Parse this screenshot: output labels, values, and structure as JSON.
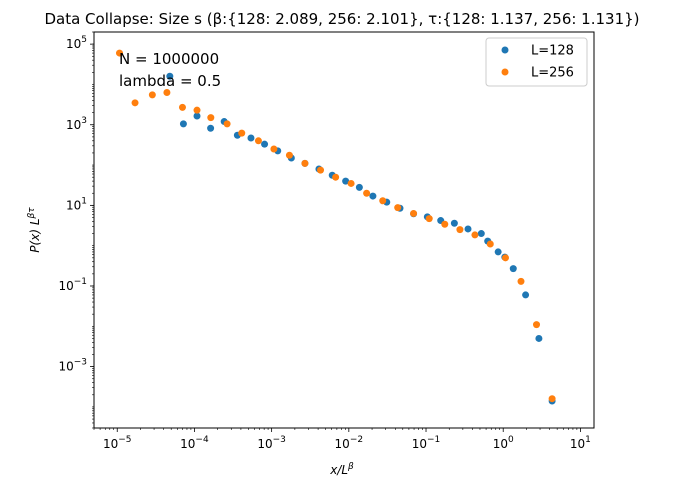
{
  "chart_data": {
    "type": "scatter",
    "title": "Data Collapse: Size s  (β:{128: 2.089, 256: 2.101}, τ:{128: 1.137, 256: 1.131})",
    "xlabel": "x/L^β",
    "ylabel": "P(x) L^βτ",
    "xscale": "log",
    "yscale": "log",
    "xlim": [
      5e-06,
      15
    ],
    "ylim": [
      3e-05,
      200000.0
    ],
    "x_ticks": [
      {
        "value": 1e-05,
        "label": "10^-5"
      },
      {
        "value": 0.0001,
        "label": "10^-4"
      },
      {
        "value": 0.001,
        "label": "10^-3"
      },
      {
        "value": 0.01,
        "label": "10^-2"
      },
      {
        "value": 0.1,
        "label": "10^-1"
      },
      {
        "value": 1,
        "label": "10^0"
      },
      {
        "value": 10,
        "label": "10^1"
      }
    ],
    "y_ticks": [
      {
        "value": 0.001,
        "label": "10^-3"
      },
      {
        "value": 0.1,
        "label": "10^-1"
      },
      {
        "value": 10,
        "label": "10^1"
      },
      {
        "value": 1000.0,
        "label": "10^3"
      },
      {
        "value": 100000.0,
        "label": "10^5"
      }
    ],
    "annotations": [
      "N = 1000000",
      "lambda = 0.5"
    ],
    "legend_position": "top-right",
    "grid": false,
    "series": [
      {
        "name": "L=128",
        "color": "#1f77b4",
        "x": [
          4.8e-05,
          7.2e-05,
          0.000108,
          0.000162,
          0.000243,
          0.00036,
          0.00054,
          0.00081,
          0.0012,
          0.0018,
          0.0027,
          0.0041,
          0.0061,
          0.0091,
          0.0137,
          0.0205,
          0.031,
          0.046,
          0.069,
          0.104,
          0.155,
          0.233,
          0.35,
          0.52,
          0.63,
          0.86,
          1.05,
          1.35,
          1.95,
          2.9,
          4.3
        ],
        "y": [
          16000,
          1050,
          1650,
          820,
          1200,
          550,
          470,
          330,
          225,
          150,
          110,
          80,
          56,
          40,
          28,
          17,
          12,
          8.5,
          6.2,
          5.2,
          4.2,
          3.6,
          2.6,
          2.0,
          1.3,
          0.7,
          0.52,
          0.27,
          0.06,
          0.005,
          0.00014
        ]
      },
      {
        "name": "L=256",
        "color": "#ff7f0e",
        "x": [
          1.07e-05,
          1.7e-05,
          2.85e-05,
          4.4e-05,
          7e-05,
          0.000108,
          0.000163,
          0.000265,
          0.00041,
          0.000675,
          0.00107,
          0.0017,
          0.0027,
          0.0043,
          0.00675,
          0.0107,
          0.017,
          0.0275,
          0.043,
          0.069,
          0.11,
          0.175,
          0.275,
          0.43,
          0.68,
          1.07,
          1.7,
          2.7,
          4.3
        ],
        "y": [
          60000,
          3500,
          5500,
          6300,
          2700,
          2300,
          1500,
          1050,
          620,
          400,
          250,
          175,
          110,
          75,
          50,
          35,
          20,
          13,
          8.8,
          6.3,
          4.7,
          3.4,
          2.5,
          1.85,
          1.1,
          0.5,
          0.13,
          0.011,
          0.00016
        ]
      }
    ]
  }
}
